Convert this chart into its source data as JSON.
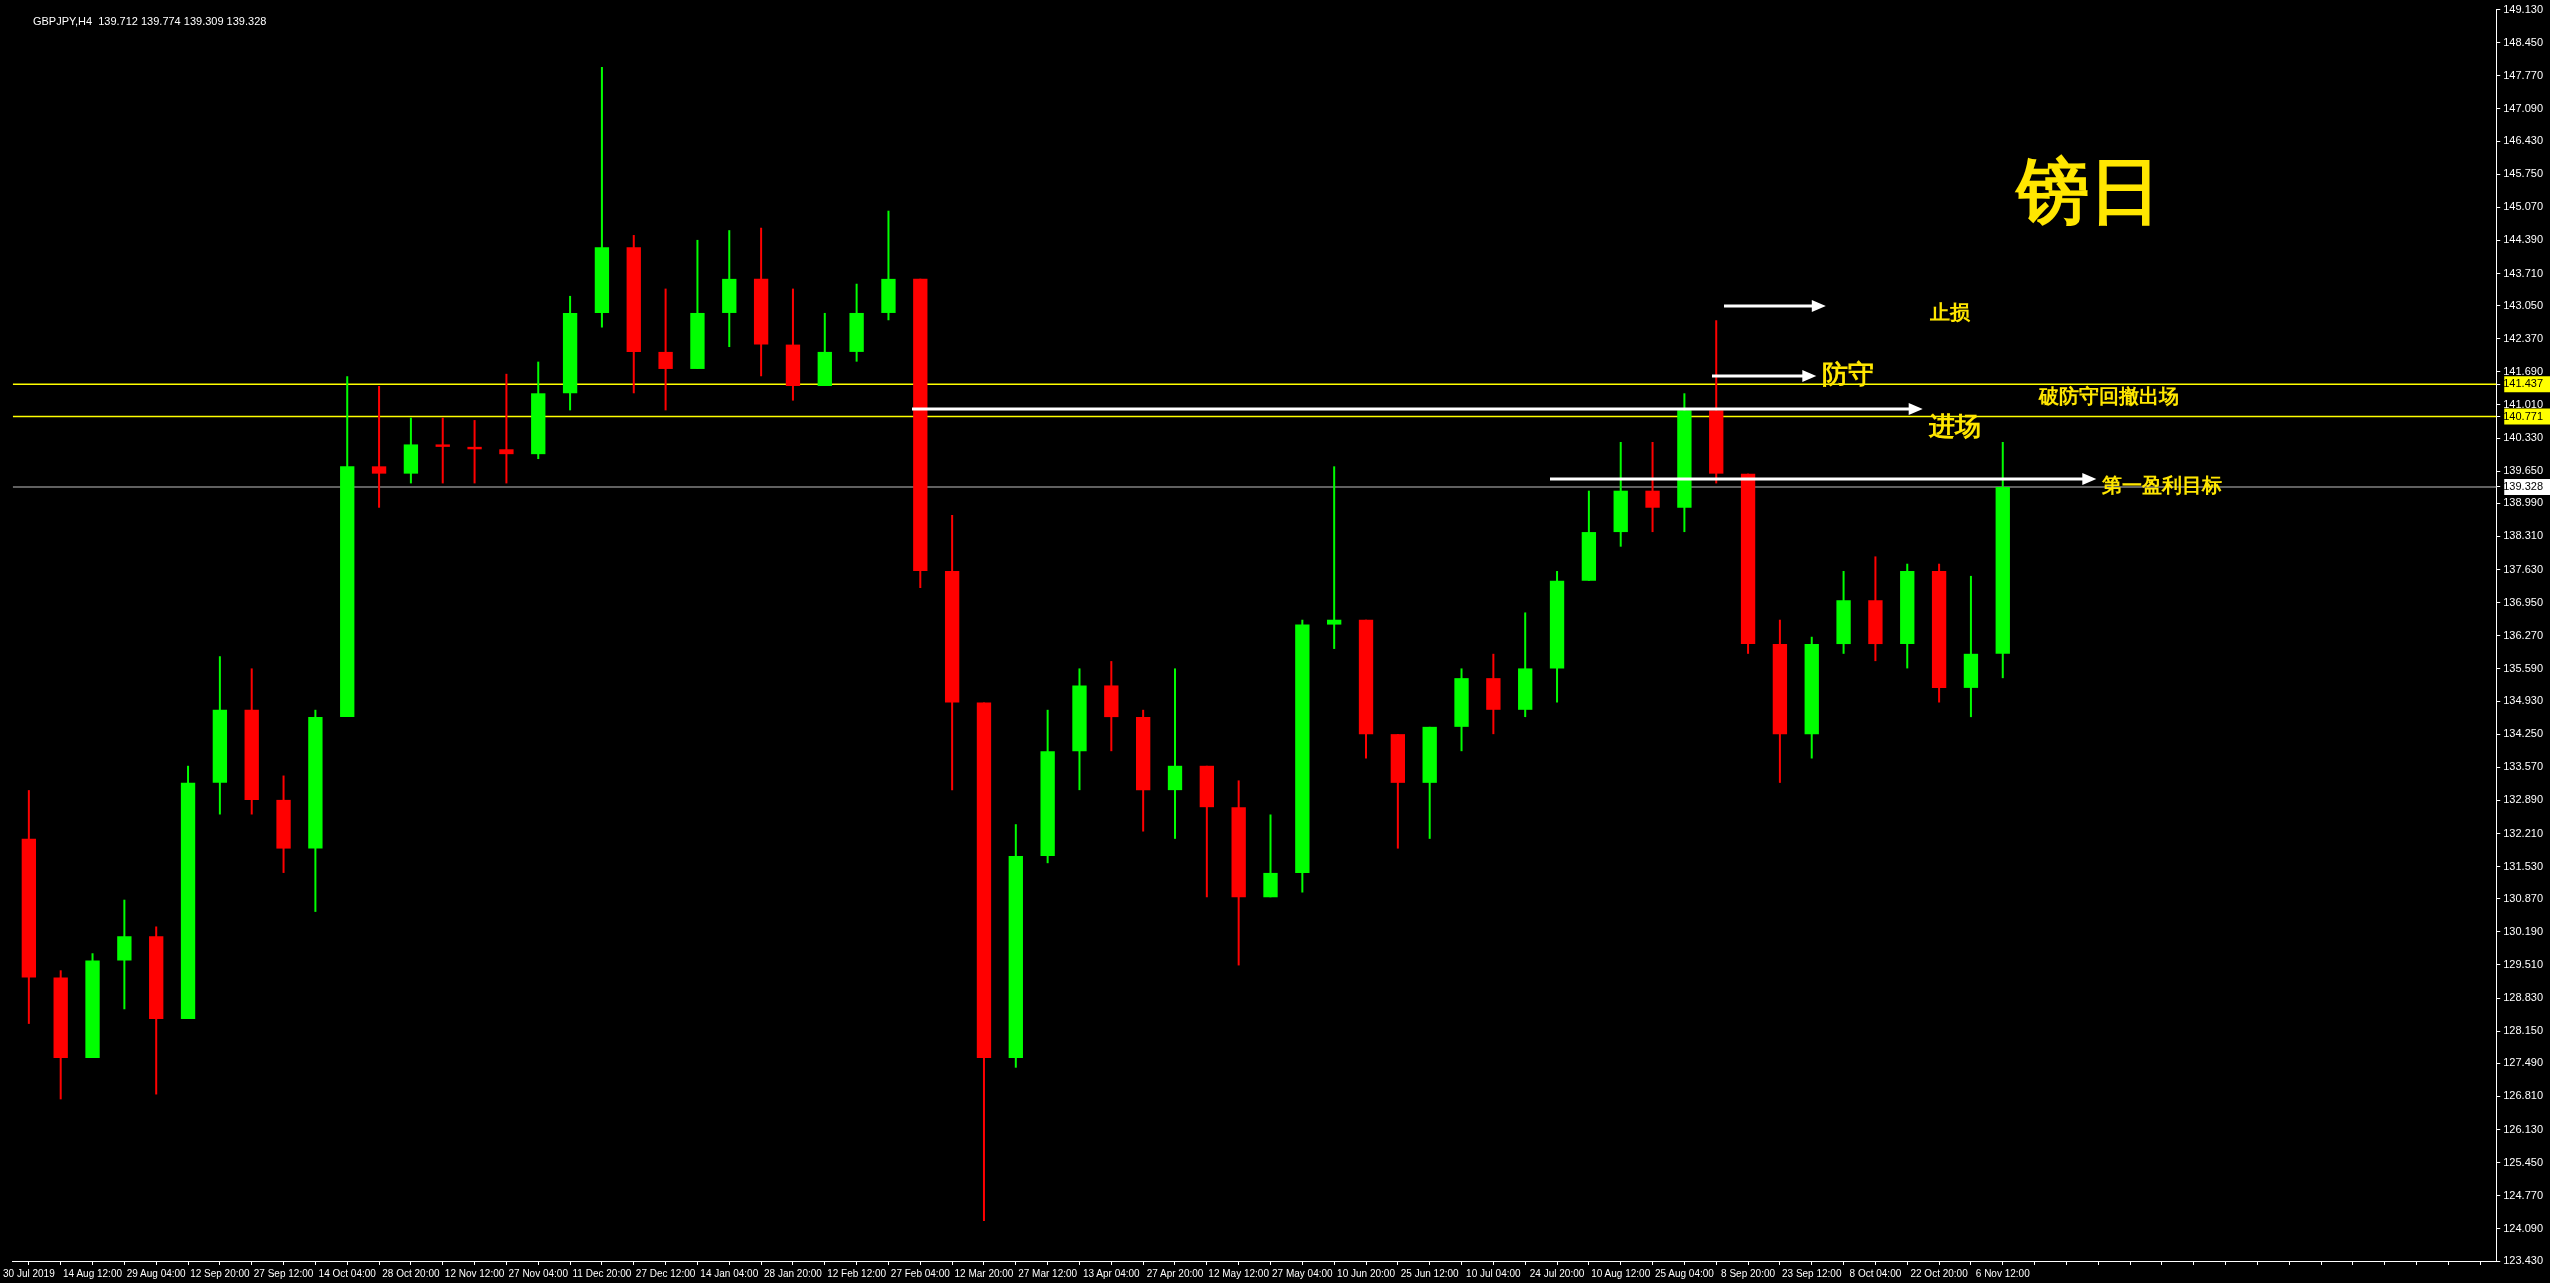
{
  "chart_data": {
    "type": "candlestick",
    "title": "镑日",
    "annotations": [
      "GBPJPY,H4  139.712 139.774 139.309 139.328",
      "止损",
      "破防守回撤出场"
    ],
    "categories": [
      "30 Jul 2019",
      null,
      "14 Aug 12:00",
      null,
      "29 Aug 04:00",
      null,
      "12 Sep 20:00",
      null,
      "27 Sep 12:00",
      null,
      "14 Oct 04:00",
      null,
      "28 Oct 20:00",
      null,
      "12 Nov 12:00",
      null,
      "27 Nov 04:00",
      null,
      "11 Dec 20:00",
      null,
      "27 Dec 12:00",
      null,
      "14 Jan 04:00",
      null,
      "28 Jan 20:00",
      null,
      "12 Feb 12:00",
      null,
      "27 Feb 04:00",
      null,
      "12 Mar 20:00",
      null,
      "27 Mar 12:00",
      null,
      "13 Apr 04:00",
      null,
      "27 Apr 20:00",
      null,
      "12 May 12:00",
      null,
      "27 May 04:00",
      null,
      "10 Jun 20:00",
      null,
      "25 Jun 12:00",
      null,
      "10 Jul 04:00",
      null,
      "24 Jul 20:00",
      null,
      "10 Aug 12:00",
      null,
      "25 Aug 04:00",
      null,
      "8 Sep 20:00",
      null,
      "23 Sep 12:00",
      null,
      "8 Oct 04:00",
      null,
      "22 Oct 20:00",
      null,
      "6 Nov 12:00",
      null,
      null,
      null,
      null,
      null,
      null,
      null,
      null,
      null,
      null,
      null,
      null,
      null,
      null,
      null
    ],
    "ohlc": [
      [
        132.1,
        133.1,
        128.3,
        129.25
      ],
      [
        129.25,
        129.4,
        126.75,
        127.6
      ],
      [
        127.6,
        129.75,
        127.6,
        129.6
      ],
      [
        129.6,
        130.85,
        128.6,
        130.1
      ],
      [
        130.1,
        130.3,
        126.85,
        128.4
      ],
      [
        128.4,
        133.6,
        128.4,
        133.25
      ],
      [
        133.25,
        135.85,
        132.6,
        134.75
      ],
      [
        134.75,
        135.6,
        132.6,
        132.9
      ],
      [
        132.9,
        133.4,
        131.4,
        131.9
      ],
      [
        131.9,
        134.75,
        130.6,
        134.6
      ],
      [
        134.6,
        141.6,
        134.6,
        139.75
      ],
      [
        139.75,
        141.4,
        138.9,
        139.6
      ],
      [
        139.6,
        140.75,
        139.4,
        140.2
      ],
      [
        140.2,
        140.75,
        139.4,
        140.15
      ],
      [
        140.15,
        140.7,
        139.4,
        140.1
      ],
      [
        140.1,
        141.65,
        139.4,
        140.0
      ],
      [
        140.0,
        141.9,
        139.9,
        141.25
      ],
      [
        141.25,
        143.25,
        140.9,
        142.9
      ],
      [
        142.9,
        147.95,
        142.6,
        144.25
      ],
      [
        144.25,
        144.5,
        141.25,
        142.1
      ],
      [
        142.1,
        143.4,
        140.9,
        141.75
      ],
      [
        141.75,
        144.4,
        141.75,
        142.9
      ],
      [
        142.9,
        144.6,
        142.2,
        143.6
      ],
      [
        143.6,
        144.65,
        141.6,
        142.25
      ],
      [
        142.25,
        143.4,
        141.1,
        141.4
      ],
      [
        141.4,
        142.9,
        141.4,
        142.1
      ],
      [
        142.1,
        143.5,
        141.9,
        142.9
      ],
      [
        142.9,
        145.0,
        142.75,
        143.6
      ],
      [
        143.6,
        143.6,
        137.25,
        137.6
      ],
      [
        137.6,
        138.75,
        133.1,
        134.9
      ],
      [
        134.9,
        134.9,
        124.25,
        127.6
      ],
      [
        127.6,
        132.4,
        127.4,
        131.75
      ],
      [
        131.75,
        134.75,
        131.6,
        133.9
      ],
      [
        133.9,
        135.6,
        133.1,
        135.25
      ],
      [
        135.25,
        135.75,
        133.9,
        134.6
      ],
      [
        134.6,
        134.75,
        132.25,
        133.1
      ],
      [
        133.1,
        135.6,
        132.1,
        133.6
      ],
      [
        133.6,
        133.6,
        130.9,
        132.75
      ],
      [
        132.75,
        133.3,
        129.5,
        130.9
      ],
      [
        130.9,
        132.6,
        130.9,
        131.4
      ],
      [
        131.4,
        136.6,
        131.0,
        136.5
      ],
      [
        136.5,
        139.75,
        136.0,
        136.6
      ],
      [
        136.6,
        136.6,
        133.75,
        134.25
      ],
      [
        134.25,
        134.25,
        131.9,
        133.25
      ],
      [
        133.25,
        134.4,
        132.1,
        134.4
      ],
      [
        134.4,
        135.6,
        133.9,
        135.4
      ],
      [
        135.4,
        135.9,
        134.25,
        134.75
      ],
      [
        134.75,
        136.75,
        134.6,
        135.6
      ],
      [
        135.6,
        137.6,
        134.9,
        137.4
      ],
      [
        137.4,
        139.25,
        137.4,
        138.4
      ],
      [
        138.4,
        140.25,
        138.1,
        139.25
      ],
      [
        139.25,
        140.25,
        138.4,
        138.9
      ],
      [
        138.9,
        141.25,
        138.4,
        140.9
      ],
      [
        140.9,
        142.75,
        139.4,
        139.6
      ],
      [
        139.6,
        139.6,
        135.9,
        136.1
      ],
      [
        136.1,
        136.6,
        133.25,
        134.25
      ],
      [
        134.25,
        136.25,
        133.75,
        136.1
      ],
      [
        136.1,
        137.6,
        135.9,
        137.0
      ],
      [
        137.0,
        137.9,
        135.75,
        136.1
      ],
      [
        136.1,
        137.75,
        135.6,
        137.6
      ],
      [
        137.6,
        137.75,
        134.9,
        135.2
      ],
      [
        135.2,
        137.5,
        134.6,
        135.9
      ],
      [
        135.9,
        140.25,
        135.4,
        139.328
      ],
      null,
      null,
      null,
      null,
      null,
      null,
      null,
      null,
      null,
      null,
      null,
      null,
      null,
      null,
      null
    ],
    "colors": [
      "#ff0000",
      "#ff0000",
      "#00ff00",
      "#00ff00",
      "#ff0000",
      "#00ff00",
      "#00ff00",
      "#ff0000",
      "#ff0000",
      "#00ff00",
      "#00ff00",
      "#ff0000",
      "#00ff00",
      "#ff0000",
      "#ff0000",
      "#ff0000",
      "#00ff00",
      "#00ff00",
      "#00ff00",
      "#ff0000",
      "#ff0000",
      "#00ff00",
      "#00ff00",
      "#ff0000",
      "#ff0000",
      "#00ff00",
      "#00ff00",
      "#00ff00",
      "#ff0000",
      "#ff0000",
      "#ff0000",
      "#00ff00",
      "#00ff00",
      "#00ff00",
      "#ff0000",
      "#ff0000",
      "#00ff00",
      "#ff0000",
      "#ff0000",
      "#00ff00",
      "#00ff00",
      "#00ff00",
      "#ff0000",
      "#ff0000",
      "#00ff00",
      "#00ff00",
      "#ff0000",
      "#00ff00",
      "#00ff00",
      "#00ff00",
      "#00ff00",
      "#ff0000",
      "#00ff00",
      "#ff0000",
      "#ff0000",
      "#ff0000",
      "#00ff00",
      "#00ff00",
      "#ff0000",
      "#00ff00",
      "#ff0000",
      "#00ff00",
      "#00ff00",
      null,
      null,
      null,
      null,
      null,
      null,
      null,
      null,
      null,
      null,
      null,
      null,
      null,
      null,
      null
    ],
    "ylim": [
      123.43,
      149.13
    ],
    "yticks": [
      {
        "value": 149.13,
        "label": "149.130"
      },
      {
        "value": 148.45,
        "label": "148.450"
      },
      {
        "value": 147.77,
        "label": "147.770"
      },
      {
        "value": 147.09,
        "label": "147.090"
      },
      {
        "value": 146.43,
        "label": "146.430"
      },
      {
        "value": 145.75,
        "label": "145.750"
      },
      {
        "value": 145.07,
        "label": "145.070"
      },
      {
        "value": 144.39,
        "label": "144.390"
      },
      {
        "value": 143.71,
        "label": "143.710"
      },
      {
        "value": 143.05,
        "label": "143.050"
      },
      {
        "value": 142.37,
        "label": "142.370"
      },
      {
        "value": 141.69,
        "label": "141.690"
      },
      141.437,
      {
        "value": 141.01,
        "label": "141.010"
      },
      140.771,
      {
        "value": 140.33,
        "label": "140.330"
      },
      {
        "value": 139.65,
        "label": "139.650"
      },
      139.328,
      {
        "value": 138.99,
        "label": "138.990"
      },
      {
        "value": 138.31,
        "label": "138.310"
      },
      {
        "value": 137.63,
        "label": "137.630"
      },
      {
        "value": 136.95,
        "label": "136.950"
      },
      {
        "value": 136.27,
        "label": "136.270"
      },
      {
        "value": 135.59,
        "label": "135.590"
      },
      {
        "value": 134.93,
        "label": "134.930"
      },
      {
        "value": 134.25,
        "label": "134.250"
      },
      {
        "value": 133.57,
        "label": "133.570"
      },
      {
        "value": 132.89,
        "label": "132.890"
      },
      {
        "value": 132.21,
        "label": "132.210"
      },
      {
        "value": 131.53,
        "label": "131.530"
      },
      {
        "value": 130.87,
        "label": "130.870"
      },
      {
        "value": 130.19,
        "label": "130.190"
      },
      {
        "value": 129.51,
        "label": "129.510"
      },
      {
        "value": 128.83,
        "label": "128.830"
      },
      {
        "value": 128.15,
        "label": "128.150"
      },
      {
        "value": 127.49,
        "label": "127.490"
      },
      {
        "value": 126.81,
        "label": "126.810"
      },
      {
        "value": 126.13,
        "label": "126.130"
      },
      {
        "value": 125.45,
        "label": "125.450"
      },
      {
        "value": 124.77,
        "label": "124.770"
      },
      {
        "value": 124.09,
        "label": "124.090"
      },
      {
        "value": 123.43,
        "label": "123.430"
      }
    ],
    "ref_lines": [
      {
        "axis": "y",
        "value": 141.437,
        "label": "防守",
        "color": "#ffff00"
      },
      {
        "axis": "y",
        "value": 140.771,
        "label": "进场",
        "color": "#ffff00"
      },
      {
        "axis": "y",
        "value": 139.328,
        "label": "第一盈利目标",
        "color": "#808080"
      }
    ]
  }
}
